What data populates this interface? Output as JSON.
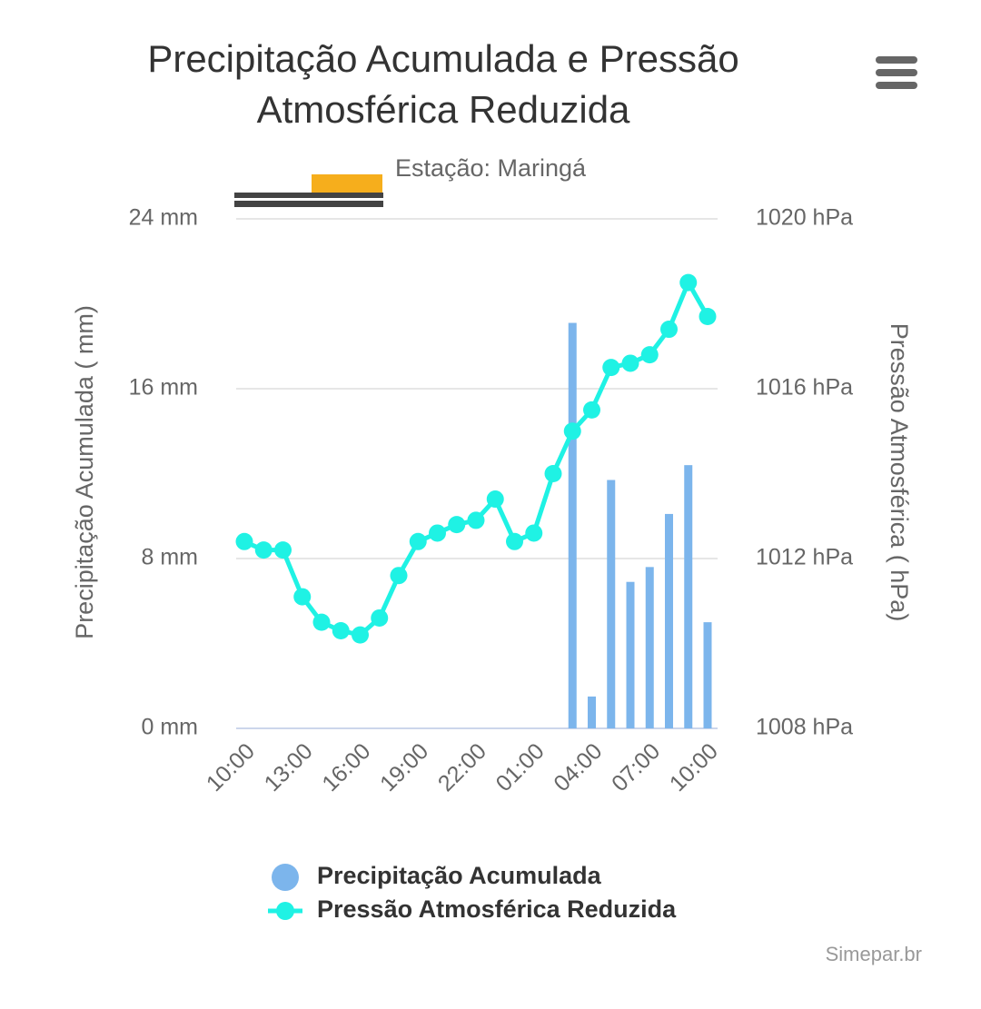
{
  "chart_data": {
    "type": "bar+line",
    "title": "Precipitação Acumulada e Pressão Atmosférica Reduzida",
    "title_lines": [
      "Precipitação Acumulada e Pressão",
      "Atmosférica Reduzida"
    ],
    "subtitle": "Estação: Maringá",
    "credit": "Simepar.br",
    "y_label": "Precipitação Acumulada ( mm)",
    "y2_label": "Pressão Atmosférica ( hPa)",
    "categories": [
      "10:00",
      null,
      null,
      "13:00",
      null,
      null,
      "16:00",
      null,
      null,
      "19:00",
      null,
      null,
      "22:00",
      null,
      null,
      "01:00",
      null,
      null,
      "04:00",
      null,
      null,
      "07:00",
      null,
      null,
      "10:00"
    ],
    "series": [
      {
        "name": "Precipitação Acumulada",
        "type": "bar",
        "color": "#7cb5ec",
        "axis": "y",
        "values": [
          0,
          0,
          0,
          0,
          0,
          0,
          0,
          0,
          0,
          0,
          0,
          0,
          0,
          0,
          0,
          0,
          0,
          19.1,
          1.5,
          11.7,
          6.9,
          7.6,
          10.1,
          12.4,
          5.0
        ]
      },
      {
        "name": "Pressão Atmosférica Reduzida",
        "type": "line",
        "color": "#1ff2e4",
        "axis": "y2",
        "values": [
          1012.4,
          1012.2,
          1012.2,
          1011.1,
          1010.5,
          1010.3,
          1010.2,
          1010.6,
          1011.6,
          1012.4,
          1012.6,
          1012.8,
          1012.9,
          1013.4,
          1012.4,
          1012.6,
          1014.0,
          1015.0,
          1015.5,
          1016.5,
          1016.6,
          1016.8,
          1017.4,
          1018.5,
          1017.7
        ]
      }
    ],
    "ylim": [
      0,
      24
    ],
    "yticks": [
      {
        "value": 0,
        "label": "0 mm"
      },
      {
        "value": 8,
        "label": "8 mm"
      },
      {
        "value": 16,
        "label": "16 mm"
      },
      {
        "value": 24,
        "label": "24 mm"
      }
    ],
    "y2lim": [
      1008,
      1020
    ],
    "y2ticks": [
      {
        "value": 1008,
        "label": "1008 hPa"
      },
      {
        "value": 1012,
        "label": "1012 hPa"
      },
      {
        "value": 1016,
        "label": "1016 hPa"
      },
      {
        "value": 1020,
        "label": "1020 hPa"
      }
    ],
    "grid": true
  }
}
